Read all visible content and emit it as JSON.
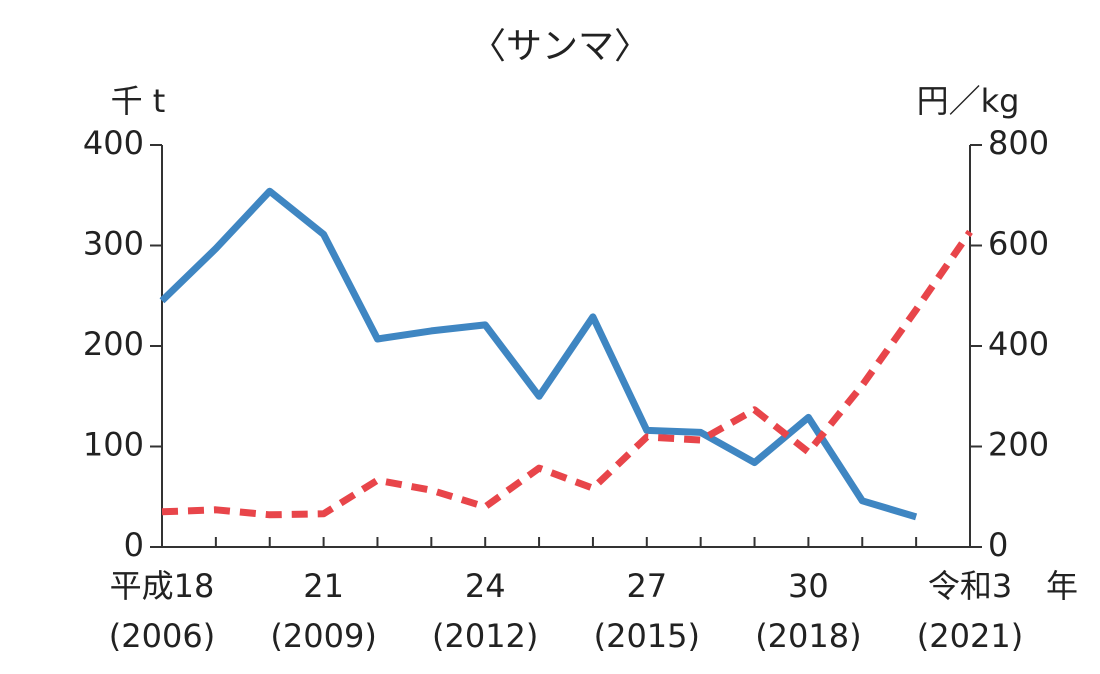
{
  "chart_data": {
    "type": "line",
    "title": "〈サンマ〉",
    "y_label": "千 t",
    "y2_label": "円／kg",
    "x_label": "年",
    "categories": [
      [
        "平成18",
        "(2006)"
      ],
      null,
      null,
      [
        "21",
        "(2009)"
      ],
      null,
      null,
      [
        "24",
        "(2012)"
      ],
      null,
      null,
      [
        "27",
        "(2015)"
      ],
      null,
      null,
      [
        "30",
        "(2018)"
      ],
      null,
      null,
      [
        "令和3",
        "(2021)"
      ]
    ],
    "ylim": [
      0,
      400
    ],
    "yticks": [
      0,
      100,
      200,
      300,
      400
    ],
    "y2lim": [
      0,
      800
    ],
    "y2ticks": [
      0,
      200,
      400,
      600,
      800
    ],
    "series": [
      {
        "color": "#3f86c2",
        "line_style": "solid",
        "axis": "y",
        "values": [
          245,
          297,
          354,
          311,
          207,
          215,
          221,
          150,
          229,
          116,
          114,
          84,
          129,
          46,
          30,
          null
        ]
      },
      {
        "color": "#e8454a",
        "line_style": "dashed",
        "axis": "y2",
        "values": [
          70,
          74,
          64,
          66,
          133,
          113,
          80,
          157,
          117,
          219,
          213,
          273,
          189,
          322,
          472,
          627
        ]
      }
    ]
  }
}
